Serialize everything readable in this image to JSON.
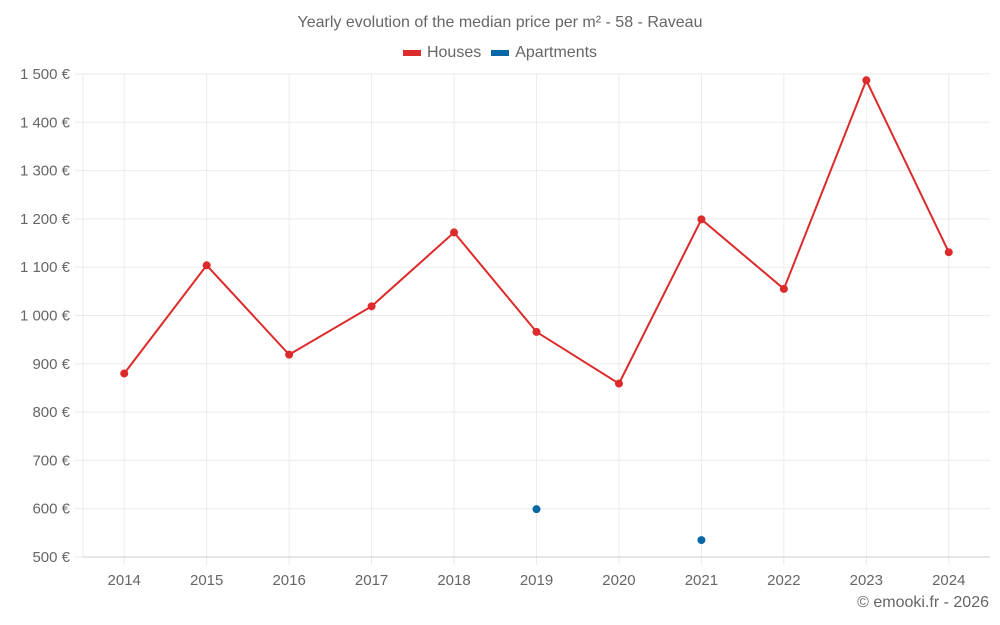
{
  "title": "Yearly evolution of the median price per m² - 58 - Raveau",
  "legend": [
    {
      "label": "Houses",
      "color": "#dd2a2a"
    },
    {
      "label": "Apartments",
      "color": "#0868a6"
    }
  ],
  "credit": "© emooki.fr - 2026",
  "colors": {
    "grid": "#ebebeb",
    "axis": "#cccccc",
    "text": "#666666"
  },
  "chart_data": {
    "type": "line",
    "title": "Yearly evolution of the median price per m² - 58 - Raveau",
    "xlabel": "",
    "ylabel": "",
    "categories": [
      "2014",
      "2015",
      "2016",
      "2017",
      "2018",
      "2019",
      "2020",
      "2021",
      "2022",
      "2023",
      "2024"
    ],
    "series": [
      {
        "name": "Houses",
        "color": "#dd2a2a",
        "values": [
          880,
          1104,
          919,
          1019,
          1172,
          966,
          859,
          1199,
          1055,
          1487,
          1131
        ]
      },
      {
        "name": "Apartments",
        "color": "#0868a6",
        "values": [
          null,
          null,
          null,
          null,
          null,
          599,
          null,
          535,
          null,
          null,
          null
        ]
      }
    ],
    "ylim": [
      500,
      1500
    ],
    "yticks": [
      500,
      600,
      700,
      800,
      900,
      1000,
      1100,
      1200,
      1300,
      1400,
      1500
    ],
    "ytick_labels": [
      "500 €",
      "600 €",
      "700 €",
      "800 €",
      "900 €",
      "1 000 €",
      "1 100 €",
      "1 200 €",
      "1 300 €",
      "1 400 €",
      "1 500 €"
    ],
    "grid": true,
    "legend_position": "top"
  }
}
